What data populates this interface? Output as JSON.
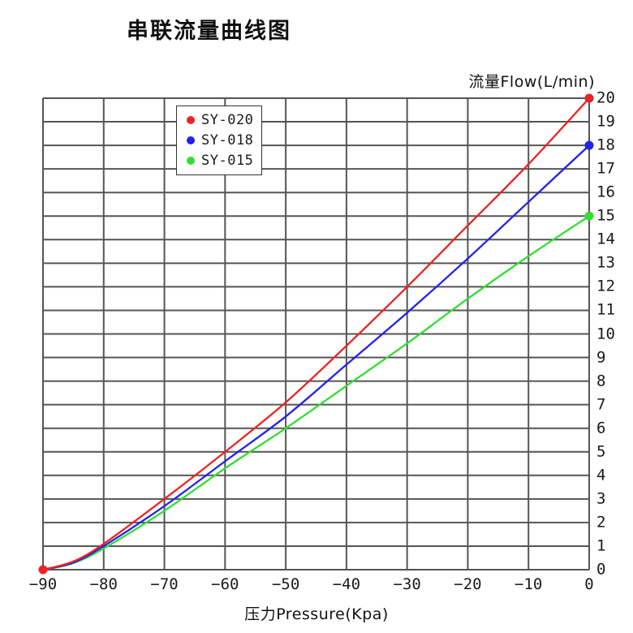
{
  "page_title": "串联流量曲线图",
  "axes": {
    "y_title": "流量Flow(L/min)",
    "x_title": "压力Pressure(Kpa)"
  },
  "legend": {
    "items": [
      {
        "label": "SY-020",
        "color": "#ee2222"
      },
      {
        "label": "SY-018",
        "color": "#2222ee"
      },
      {
        "label": "SY-015",
        "color": "#33dd33"
      }
    ]
  },
  "chart_data": {
    "type": "line",
    "title": "串联流量曲线图",
    "xlabel": "压力Pressure(Kpa)",
    "ylabel": "流量Flow(L/min)",
    "xlim": [
      -90,
      0
    ],
    "ylim": [
      0,
      20
    ],
    "x_ticks": [
      -90,
      -80,
      -70,
      -60,
      -50,
      -40,
      -30,
      -20,
      -10,
      0
    ],
    "y_ticks": [
      0,
      1,
      2,
      3,
      4,
      5,
      6,
      7,
      8,
      9,
      10,
      11,
      12,
      13,
      14,
      15,
      16,
      17,
      18,
      19,
      20
    ],
    "grid": true,
    "grid_color": "#555555",
    "legend_position": "top-left-inside",
    "series": [
      {
        "name": "SY-015",
        "color": "#33dd33",
        "points": [
          [
            -90,
            0
          ],
          [
            -85,
            0.28
          ],
          [
            -80,
            0.9
          ],
          [
            -70,
            2.5
          ],
          [
            -60,
            4.3
          ],
          [
            -50,
            6.0
          ],
          [
            -40,
            7.8
          ],
          [
            -30,
            9.6
          ],
          [
            -20,
            11.5
          ],
          [
            -10,
            13.3
          ],
          [
            0,
            15
          ]
        ],
        "markers": [
          [
            0,
            15
          ]
        ]
      },
      {
        "name": "SY-018",
        "color": "#2222ee",
        "points": [
          [
            -90,
            0
          ],
          [
            -85,
            0.3
          ],
          [
            -80,
            1.0
          ],
          [
            -70,
            2.7
          ],
          [
            -60,
            4.6
          ],
          [
            -50,
            6.5
          ],
          [
            -40,
            8.7
          ],
          [
            -30,
            10.9
          ],
          [
            -20,
            13.2
          ],
          [
            -10,
            15.6
          ],
          [
            0,
            18
          ]
        ],
        "markers": [
          [
            0,
            18
          ]
        ]
      },
      {
        "name": "SY-020",
        "color": "#ee2222",
        "points": [
          [
            -90,
            0
          ],
          [
            -85,
            0.35
          ],
          [
            -80,
            1.1
          ],
          [
            -70,
            3.0
          ],
          [
            -60,
            5.0
          ],
          [
            -50,
            7.1
          ],
          [
            -40,
            9.5
          ],
          [
            -30,
            12.0
          ],
          [
            -20,
            14.6
          ],
          [
            -10,
            17.2
          ],
          [
            0,
            20
          ]
        ],
        "markers": [
          [
            -90,
            0
          ],
          [
            0,
            20
          ]
        ]
      }
    ]
  }
}
